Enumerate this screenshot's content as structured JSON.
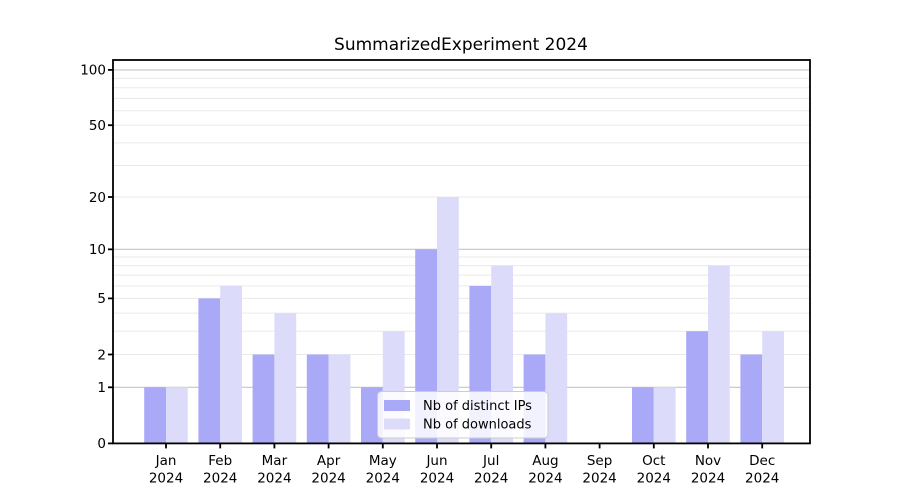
{
  "chart_data": {
    "type": "bar",
    "title": "SummarizedExperiment 2024",
    "categories": [
      "Jan",
      "Feb",
      "Mar",
      "Apr",
      "May",
      "Jun",
      "Jul",
      "Aug",
      "Sep",
      "Oct",
      "Nov",
      "Dec"
    ],
    "year_label": "2024",
    "series": [
      {
        "name": "Nb of distinct IPs",
        "color": "#a9a9f7",
        "values": [
          1,
          5,
          2,
          2,
          1,
          10,
          6,
          2,
          0,
          1,
          3,
          2
        ]
      },
      {
        "name": "Nb of downloads",
        "color": "#dcdcfa",
        "values": [
          1,
          6,
          4,
          2,
          3,
          20,
          8,
          4,
          0,
          1,
          8,
          3
        ]
      }
    ],
    "y_ticks": [
      0,
      1,
      2,
      5,
      10,
      20,
      50,
      100
    ],
    "y_scale": "log1p",
    "ylim": [
      0,
      113
    ],
    "xlabel": "",
    "ylabel": "",
    "grid": "horizontal",
    "grid_major_values": [
      1,
      10,
      100
    ],
    "grid_minor_values": [
      2,
      3,
      4,
      5,
      6,
      7,
      8,
      9,
      20,
      30,
      40,
      50,
      60,
      70,
      80,
      90
    ],
    "legend_position": "inside-bottom-center",
    "colors": {
      "distinct_ips_bar": "#a9a9f7",
      "downloads_bar": "#dcdcfa",
      "grid_major": "#c4c4c4",
      "grid_minor": "#eaeaea",
      "axis": "#000000",
      "legend_border": "#cccccc",
      "legend_background": "rgba(255,255,255,0.85)"
    }
  }
}
